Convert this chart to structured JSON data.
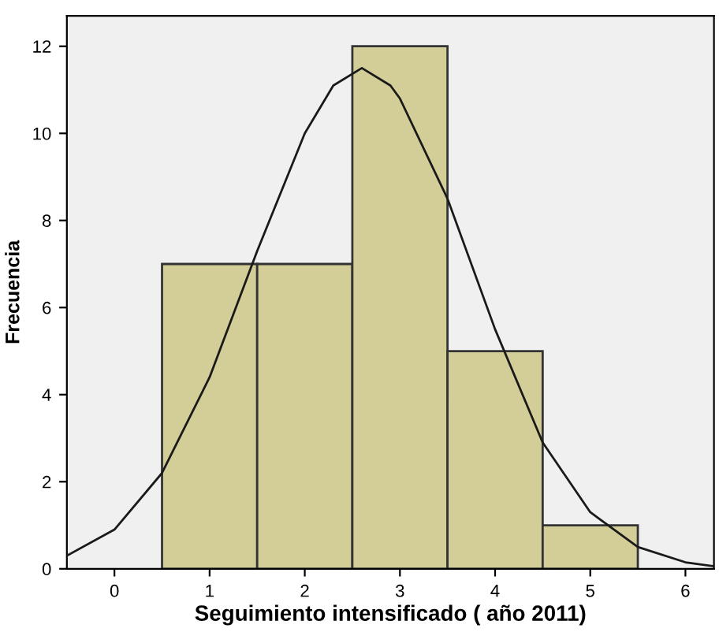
{
  "chart_data": {
    "type": "histogram",
    "xlabel": "Seguimiento intensificado ( año 2011)",
    "ylabel": "Frecuencia",
    "bins": [
      0.5,
      1.5,
      2.5,
      3.5,
      4.5,
      5.5
    ],
    "values": [
      7,
      7,
      12,
      5,
      1
    ],
    "color": "#d3ce97",
    "series": [
      {
        "type": "line",
        "color": "#1a1a1a",
        "x": [
          -0.5,
          0,
          0.5,
          1,
          1.5,
          2,
          2.3,
          2.6,
          2.9,
          3,
          3.5,
          4,
          4.5,
          5,
          5.5,
          6,
          6.3
        ],
        "values": [
          0.3,
          0.9,
          2.2,
          4.4,
          7.3,
          10.0,
          11.1,
          11.5,
          11.1,
          10.8,
          8.5,
          5.5,
          2.9,
          1.3,
          0.5,
          0.15,
          0.06
        ]
      }
    ],
    "xlim": [
      -0.5,
      6.3
    ],
    "ylim": [
      0,
      12.7
    ],
    "xticks": [
      0,
      1,
      2,
      3,
      4,
      5,
      6
    ],
    "yticks": [
      0,
      2,
      4,
      6,
      8,
      10,
      12
    ],
    "grid": false,
    "legend": false
  }
}
